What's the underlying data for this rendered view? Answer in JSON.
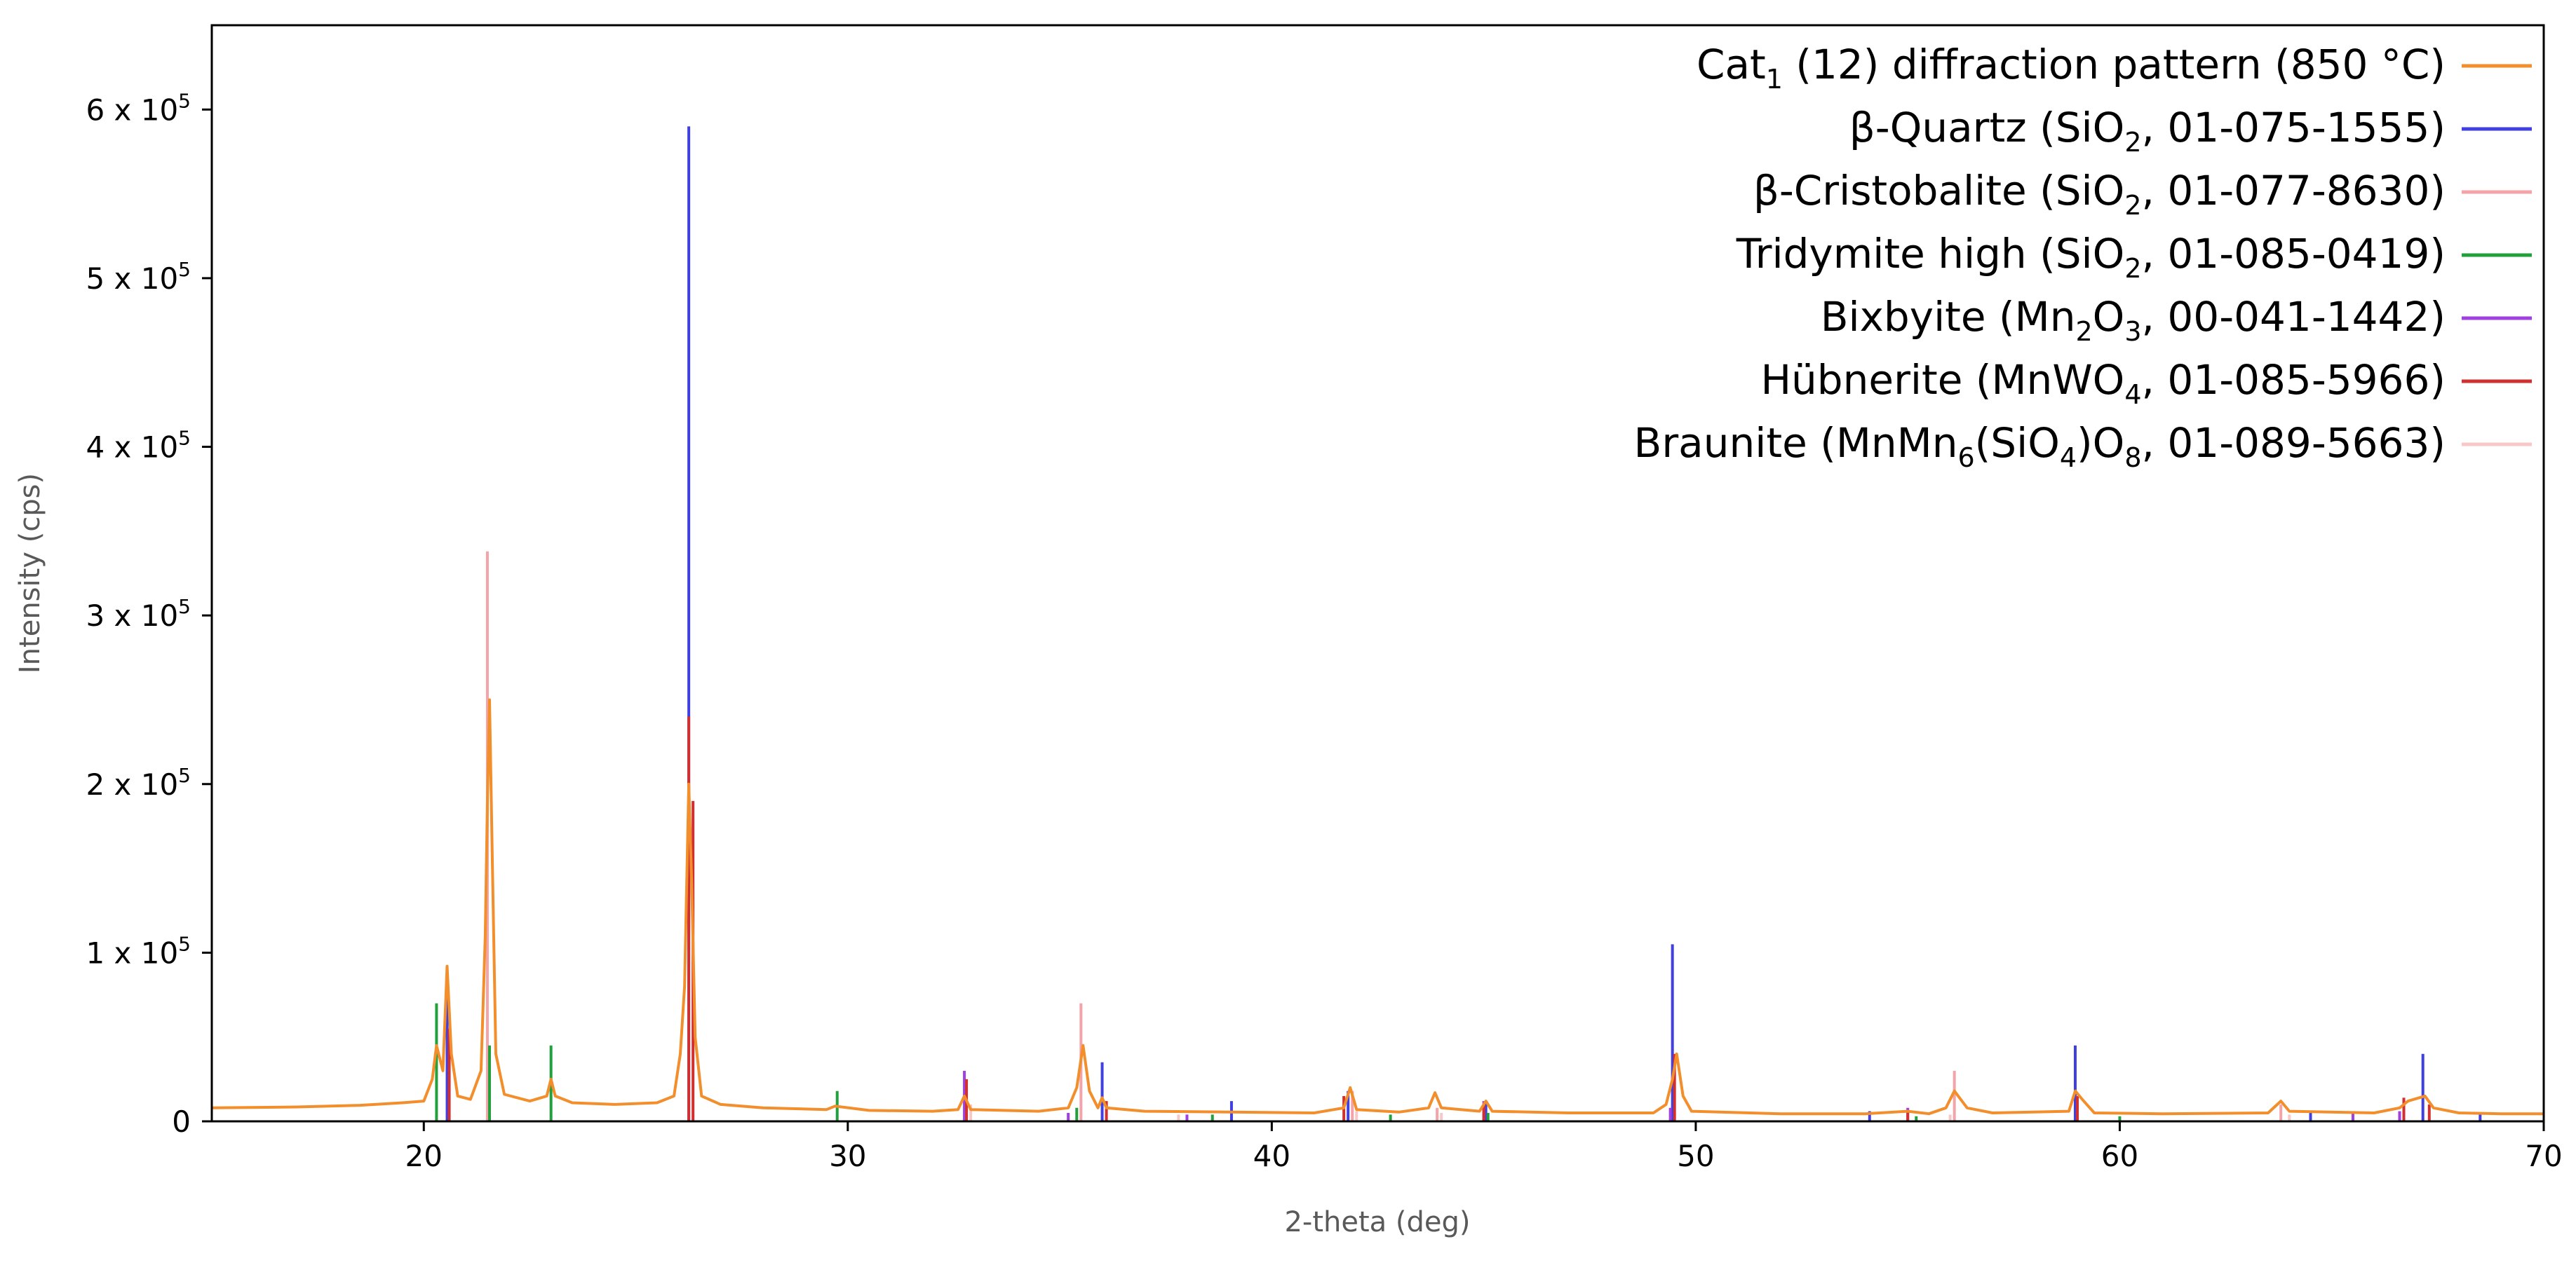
{
  "chart_data": {
    "type": "line",
    "xlabel": "2-theta (deg)",
    "ylabel": "Intensity (cps)",
    "xlim": [
      15,
      70
    ],
    "ylim": [
      0,
      650000
    ],
    "xticks": [
      20,
      30,
      40,
      50,
      60,
      70
    ],
    "xtick_labels": [
      "20",
      "30",
      "40",
      "50",
      "60",
      "70"
    ],
    "yticks": [
      {
        "value": 0,
        "mantissa": "0",
        "exp": ""
      },
      {
        "value": 100000,
        "mantissa": "1 x 10",
        "exp": "5"
      },
      {
        "value": 200000,
        "mantissa": "2 x 10",
        "exp": "5"
      },
      {
        "value": 300000,
        "mantissa": "3 x 10",
        "exp": "5"
      },
      {
        "value": 400000,
        "mantissa": "4 x 10",
        "exp": "5"
      },
      {
        "value": 500000,
        "mantissa": "5 x 10",
        "exp": "5"
      },
      {
        "value": 600000,
        "mantissa": "6 x 10",
        "exp": "5"
      }
    ],
    "grid": false,
    "legend_position": "top-right",
    "pattern": {
      "color": "#f28e2b",
      "points": [
        [
          15.0,
          8000
        ],
        [
          17.0,
          8500
        ],
        [
          18.5,
          9500
        ],
        [
          19.5,
          11000
        ],
        [
          20.0,
          12000
        ],
        [
          20.2,
          25000
        ],
        [
          20.3,
          45000
        ],
        [
          20.45,
          30000
        ],
        [
          20.55,
          92000
        ],
        [
          20.65,
          40000
        ],
        [
          20.8,
          15000
        ],
        [
          21.1,
          13000
        ],
        [
          21.35,
          30000
        ],
        [
          21.45,
          110000
        ],
        [
          21.5,
          190000
        ],
        [
          21.55,
          250000
        ],
        [
          21.62,
          150000
        ],
        [
          21.7,
          40000
        ],
        [
          21.9,
          16000
        ],
        [
          22.5,
          12000
        ],
        [
          22.9,
          15000
        ],
        [
          23.0,
          25000
        ],
        [
          23.1,
          15000
        ],
        [
          23.5,
          11000
        ],
        [
          24.5,
          10000
        ],
        [
          25.5,
          11000
        ],
        [
          25.9,
          15000
        ],
        [
          26.05,
          40000
        ],
        [
          26.15,
          80000
        ],
        [
          26.25,
          200000
        ],
        [
          26.32,
          140000
        ],
        [
          26.4,
          50000
        ],
        [
          26.55,
          15000
        ],
        [
          27.0,
          10000
        ],
        [
          28.0,
          8000
        ],
        [
          29.5,
          7000
        ],
        [
          29.7,
          9000
        ],
        [
          30.5,
          6500
        ],
        [
          32.0,
          6000
        ],
        [
          32.6,
          7000
        ],
        [
          32.75,
          15000
        ],
        [
          32.9,
          7000
        ],
        [
          34.5,
          6000
        ],
        [
          35.2,
          8000
        ],
        [
          35.4,
          20000
        ],
        [
          35.55,
          45000
        ],
        [
          35.7,
          18000
        ],
        [
          35.9,
          8000
        ],
        [
          36.0,
          14000
        ],
        [
          36.1,
          8000
        ],
        [
          37.0,
          6000
        ],
        [
          39.0,
          5500
        ],
        [
          41.0,
          5000
        ],
        [
          41.7,
          8000
        ],
        [
          41.85,
          20000
        ],
        [
          42.0,
          7000
        ],
        [
          43.0,
          5500
        ],
        [
          43.7,
          8000
        ],
        [
          43.85,
          17000
        ],
        [
          44.0,
          8000
        ],
        [
          44.9,
          6000
        ],
        [
          45.05,
          12000
        ],
        [
          45.2,
          6000
        ],
        [
          47.0,
          5000
        ],
        [
          49.0,
          5000
        ],
        [
          49.3,
          10000
        ],
        [
          49.45,
          25000
        ],
        [
          49.55,
          40000
        ],
        [
          49.7,
          15000
        ],
        [
          49.9,
          6000
        ],
        [
          52.0,
          4500
        ],
        [
          54.0,
          4500
        ],
        [
          55.0,
          6000
        ],
        [
          55.5,
          4500
        ],
        [
          55.9,
          8000
        ],
        [
          56.1,
          18000
        ],
        [
          56.4,
          8000
        ],
        [
          57.0,
          5000
        ],
        [
          58.8,
          6000
        ],
        [
          58.95,
          18000
        ],
        [
          59.15,
          12000
        ],
        [
          59.4,
          5000
        ],
        [
          61.0,
          4500
        ],
        [
          63.5,
          5000
        ],
        [
          63.8,
          12000
        ],
        [
          64.0,
          6000
        ],
        [
          66.0,
          5000
        ],
        [
          66.6,
          8000
        ],
        [
          66.8,
          12000
        ],
        [
          67.2,
          15000
        ],
        [
          67.4,
          8000
        ],
        [
          68.0,
          5000
        ],
        [
          69.0,
          4500
        ],
        [
          70.0,
          4500
        ]
      ]
    },
    "series": [
      {
        "name": "β-Quartz (SiO",
        "sub": "2",
        "tail": ", 01-075-1555)",
        "color": "#4040e0",
        "peaks": [
          [
            20.55,
            80000
          ],
          [
            26.25,
            590000
          ],
          [
            36.0,
            35000
          ],
          [
            39.05,
            12000
          ],
          [
            41.8,
            18000
          ],
          [
            45.05,
            12000
          ],
          [
            49.45,
            105000
          ],
          [
            54.1,
            6000
          ],
          [
            58.95,
            45000
          ],
          [
            64.5,
            6000
          ],
          [
            67.15,
            40000
          ],
          [
            68.5,
            4000
          ]
        ]
      },
      {
        "name": "β-Cristobalite (SiO",
        "sub": "2",
        "tail": ", 01-077-8630)",
        "color": "#f4a3a8",
        "peaks": [
          [
            21.5,
            338000
          ],
          [
            35.5,
            70000
          ],
          [
            41.9,
            18000
          ],
          [
            43.9,
            8000
          ],
          [
            56.1,
            30000
          ],
          [
            63.8,
            10000
          ]
        ]
      },
      {
        "name": "Tridymite high (SiO",
        "sub": "2",
        "tail": ", 01-085-0419)",
        "color": "#22a03c",
        "peaks": [
          [
            20.3,
            70000
          ],
          [
            21.55,
            45000
          ],
          [
            23.0,
            45000
          ],
          [
            29.75,
            18000
          ],
          [
            35.4,
            8000
          ],
          [
            38.6,
            4000
          ],
          [
            42.8,
            4000
          ],
          [
            45.1,
            5000
          ],
          [
            55.2,
            3000
          ],
          [
            60.0,
            3000
          ]
        ]
      },
      {
        "name": "Bixbyite (Mn",
        "sub": "2",
        "tail": "O",
        "sub2": "3",
        "tail2": ", 00-041-1442)",
        "color": "#a040e0",
        "peaks": [
          [
            32.75,
            30000
          ],
          [
            35.2,
            5000
          ],
          [
            38.0,
            4000
          ],
          [
            45.0,
            12000
          ],
          [
            49.4,
            8000
          ],
          [
            55.0,
            8000
          ],
          [
            65.5,
            5000
          ],
          [
            66.6,
            6000
          ]
        ]
      },
      {
        "name": "Hübnerite (MnWO",
        "sub": "4",
        "tail": ", 01-085-5966)",
        "color": "#d03030",
        "peaks": [
          [
            20.6,
            55000
          ],
          [
            26.25,
            240000
          ],
          [
            26.35,
            190000
          ],
          [
            32.8,
            25000
          ],
          [
            36.1,
            12000
          ],
          [
            41.7,
            15000
          ],
          [
            45.0,
            10000
          ],
          [
            49.5,
            40000
          ],
          [
            55.0,
            6000
          ],
          [
            59.0,
            15000
          ],
          [
            66.7,
            14000
          ],
          [
            67.3,
            10000
          ]
        ]
      },
      {
        "name": "Braunite (MnMn",
        "sub": "6",
        "tail": "(SiO",
        "sub2": "4",
        "tail2": ")O",
        "sub3": "8",
        "tail3": ", 01-089-5663)",
        "color": "#f8c8c8",
        "peaks": [
          [
            32.9,
            10000
          ],
          [
            37.8,
            4000
          ],
          [
            42.0,
            6000
          ],
          [
            44.0,
            5000
          ],
          [
            56.0,
            4000
          ],
          [
            64.0,
            4000
          ]
        ]
      }
    ],
    "legend": [
      {
        "parts": [
          [
            "Cat",
            "n"
          ],
          [
            "1",
            "s"
          ],
          [
            " (12) diffraction pattern (850 °C)",
            "n"
          ]
        ],
        "color": "#f28e2b"
      },
      {
        "parts": [
          [
            "β-Quartz (SiO",
            "n"
          ],
          [
            "2",
            "s"
          ],
          [
            ", 01-075-1555)",
            "n"
          ]
        ],
        "color": "#4040e0"
      },
      {
        "parts": [
          [
            "β-Cristobalite (SiO",
            "n"
          ],
          [
            "2",
            "s"
          ],
          [
            ", 01-077-8630)",
            "n"
          ]
        ],
        "color": "#f4a3a8"
      },
      {
        "parts": [
          [
            "Tridymite high (SiO",
            "n"
          ],
          [
            "2",
            "s"
          ],
          [
            ", 01-085-0419)",
            "n"
          ]
        ],
        "color": "#22a03c"
      },
      {
        "parts": [
          [
            "Bixbyite (Mn",
            "n"
          ],
          [
            "2",
            "s"
          ],
          [
            "O",
            "n"
          ],
          [
            "3",
            "s"
          ],
          [
            ", 00-041-1442)",
            "n"
          ]
        ],
        "color": "#a040e0"
      },
      {
        "parts": [
          [
            "Hübnerite (MnWO",
            "n"
          ],
          [
            "4",
            "s"
          ],
          [
            ", 01-085-5966)",
            "n"
          ]
        ],
        "color": "#d03030"
      },
      {
        "parts": [
          [
            "Braunite (MnMn",
            "n"
          ],
          [
            "6",
            "s"
          ],
          [
            "(SiO",
            "n"
          ],
          [
            "4",
            "s"
          ],
          [
            ")O",
            "n"
          ],
          [
            "8",
            "s"
          ],
          [
            ", 01-089-5663)",
            "n"
          ]
        ],
        "color": "#f8c8c8"
      }
    ]
  }
}
